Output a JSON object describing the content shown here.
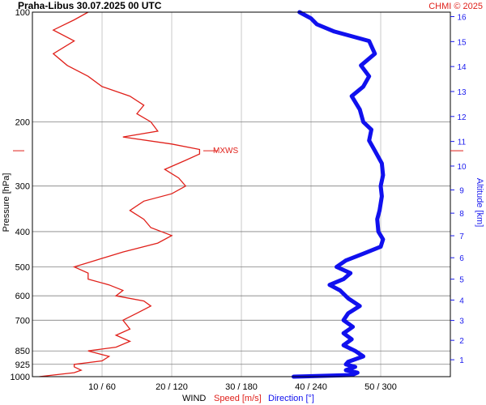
{
  "header": {
    "station_time": "Praha-Libus    30.07.2025 00 UTC",
    "copyright": "CHMI © 2025"
  },
  "colors": {
    "speed": "#e0201a",
    "direction": "#1010ee",
    "grid_light": "#c8c8c8",
    "grid_dark": "#808080",
    "text": "#000000",
    "altitude_axis": "#1a1aee"
  },
  "chart_data": {
    "type": "line",
    "title": "Praha-Libus    30.07.2025 00 UTC",
    "y_axis": {
      "label": "Pressure [hPa]",
      "scale": "log-pressure",
      "range": [
        1000,
        100
      ],
      "ticks": [
        100,
        200,
        300,
        400,
        500,
        600,
        700,
        850,
        925,
        1000
      ]
    },
    "altitude_axis": {
      "label": "Altitude [km]",
      "ticks_km": [
        1,
        2,
        3,
        4,
        5,
        6,
        7,
        8,
        9,
        10,
        11,
        12,
        13,
        14,
        15,
        16
      ]
    },
    "x_axis": {
      "label": "WIND",
      "speed_label": "Speed [m/s]",
      "direction_label": "Direction [°]",
      "tick_labels": [
        "10 / 60",
        "20 / 120",
        "30 / 180",
        "40 / 240",
        "50 / 300"
      ],
      "speed_range": [
        0,
        60
      ],
      "direction_range": [
        0,
        360
      ]
    },
    "annotation": {
      "text": "MXWS",
      "pressure_hPa": 240,
      "speed_ms": 25
    },
    "grid": true,
    "series": [
      {
        "name": "Speed [m/s]",
        "points": [
          [
            1000,
            1
          ],
          [
            990,
            3
          ],
          [
            975,
            6
          ],
          [
            960,
            7
          ],
          [
            940,
            6
          ],
          [
            925,
            6
          ],
          [
            905,
            10
          ],
          [
            880,
            11
          ],
          [
            860,
            9
          ],
          [
            850,
            8
          ],
          [
            830,
            12
          ],
          [
            800,
            14
          ],
          [
            770,
            12
          ],
          [
            740,
            14
          ],
          [
            700,
            13
          ],
          [
            670,
            15
          ],
          [
            640,
            17
          ],
          [
            620,
            16
          ],
          [
            600,
            12
          ],
          [
            580,
            13
          ],
          [
            560,
            11
          ],
          [
            540,
            8
          ],
          [
            520,
            8
          ],
          [
            500,
            6
          ],
          [
            480,
            9
          ],
          [
            455,
            13
          ],
          [
            430,
            18
          ],
          [
            410,
            20
          ],
          [
            390,
            17
          ],
          [
            370,
            16
          ],
          [
            350,
            14
          ],
          [
            330,
            16
          ],
          [
            315,
            20
          ],
          [
            300,
            22
          ],
          [
            285,
            21
          ],
          [
            270,
            19
          ],
          [
            255,
            22
          ],
          [
            245,
            24
          ],
          [
            238,
            24
          ],
          [
            230,
            20
          ],
          [
            220,
            13
          ],
          [
            212,
            18
          ],
          [
            200,
            17
          ],
          [
            190,
            15
          ],
          [
            180,
            16
          ],
          [
            170,
            14
          ],
          [
            160,
            10
          ],
          [
            150,
            8
          ],
          [
            140,
            5
          ],
          [
            130,
            3
          ],
          [
            120,
            6
          ],
          [
            112,
            3
          ],
          [
            105,
            6
          ],
          [
            100,
            8
          ]
        ]
      },
      {
        "name": "Direction [°]",
        "points": [
          [
            1000,
            225
          ],
          [
            990,
            275
          ],
          [
            975,
            280
          ],
          [
            960,
            270
          ],
          [
            940,
            278
          ],
          [
            925,
            270
          ],
          [
            910,
            272
          ],
          [
            880,
            285
          ],
          [
            850,
            278
          ],
          [
            820,
            268
          ],
          [
            790,
            275
          ],
          [
            760,
            268
          ],
          [
            730,
            276
          ],
          [
            700,
            268
          ],
          [
            670,
            272
          ],
          [
            640,
            282
          ],
          [
            610,
            272
          ],
          [
            580,
            265
          ],
          [
            560,
            256
          ],
          [
            540,
            268
          ],
          [
            520,
            274
          ],
          [
            500,
            262
          ],
          [
            480,
            270
          ],
          [
            460,
            285
          ],
          [
            440,
            300
          ],
          [
            420,
            302
          ],
          [
            400,
            298
          ],
          [
            370,
            297
          ],
          [
            350,
            299
          ],
          [
            320,
            301
          ],
          [
            300,
            300
          ],
          [
            280,
            302
          ],
          [
            260,
            301
          ],
          [
            240,
            295
          ],
          [
            225,
            290
          ],
          [
            210,
            292
          ],
          [
            200,
            285
          ],
          [
            185,
            282
          ],
          [
            170,
            275
          ],
          [
            160,
            285
          ],
          [
            150,
            290
          ],
          [
            140,
            283
          ],
          [
            130,
            295
          ],
          [
            120,
            290
          ],
          [
            113,
            260
          ],
          [
            108,
            245
          ],
          [
            104,
            240
          ],
          [
            100,
            230
          ]
        ]
      }
    ]
  }
}
